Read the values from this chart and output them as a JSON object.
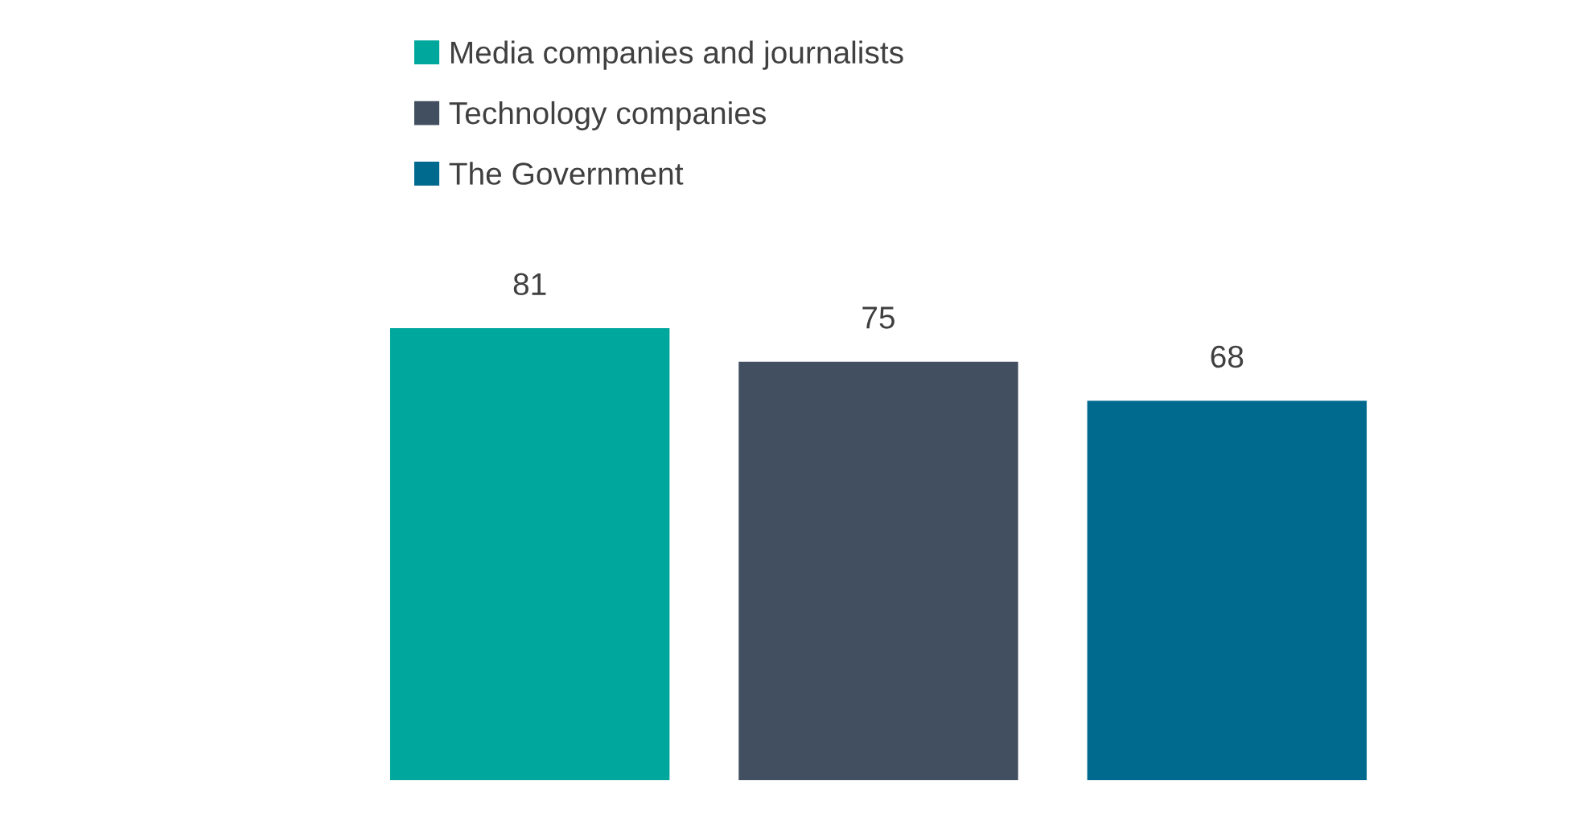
{
  "chart_data": {
    "type": "bar",
    "categories": [
      null
    ],
    "series": [
      {
        "name": "Media companies and journalists",
        "color": "#00a79d",
        "values": [
          81
        ]
      },
      {
        "name": "Technology companies",
        "color": "#424f60",
        "values": [
          75
        ]
      },
      {
        "name": "The Government",
        "color": "#006a8e",
        "values": [
          68
        ]
      }
    ],
    "data_labels": true,
    "legend": "top"
  }
}
